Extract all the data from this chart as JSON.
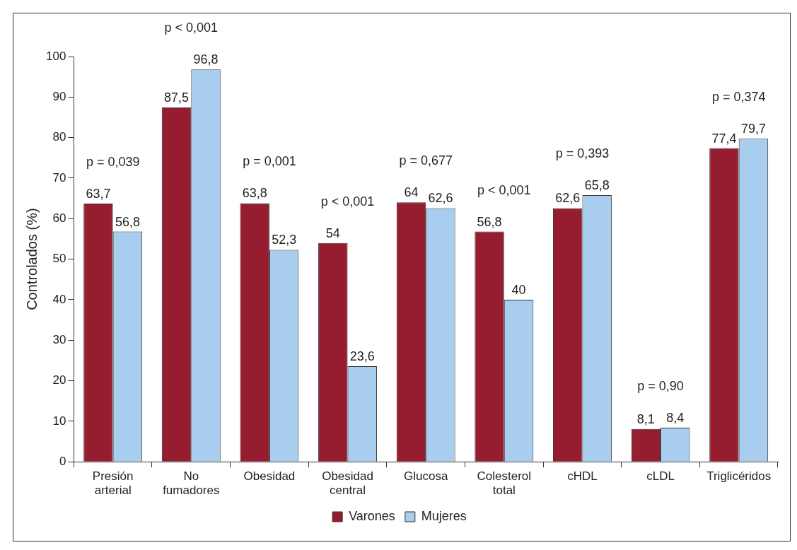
{
  "chart_data": {
    "type": "bar",
    "ylabel": "Controlados (%)",
    "categories": [
      "Presión arterial",
      "No fumadores",
      "Obesidad",
      "Obesidad central",
      "Glucosa",
      "Colesterol total",
      "cHDL",
      "cLDL",
      "Triglicéridos"
    ],
    "series": [
      {
        "name": "Varones",
        "color": "#961c30",
        "values": [
          63.7,
          87.5,
          63.8,
          54,
          64,
          56.8,
          62.6,
          8.1,
          77.4
        ],
        "value_labels": [
          "63,7",
          "87,5",
          "63,8",
          "54",
          "64",
          "56,8",
          "62,6",
          "8,1",
          "77,4"
        ]
      },
      {
        "name": "Mujeres",
        "color": "#a9cdee",
        "values": [
          56.8,
          96.8,
          52.3,
          23.6,
          62.6,
          40,
          65.8,
          8.4,
          79.7
        ],
        "value_labels": [
          "56,8",
          "96,8",
          "52,3",
          "23,6",
          "62,6",
          "40",
          "65,8",
          "8,4",
          "79,7"
        ]
      }
    ],
    "ylim": [
      0,
      100
    ],
    "yticks": [
      0,
      10,
      20,
      30,
      40,
      50,
      60,
      70,
      80,
      90,
      100
    ],
    "grid": false,
    "legend": "bottom",
    "annotations": [
      "p = 0,039",
      "p < 0,001",
      "p = 0,001",
      "p < 0,001",
      "p = 0,677",
      "p < 0,001",
      "p = 0,393",
      "p = 0,90",
      "p = 0,374"
    ]
  }
}
